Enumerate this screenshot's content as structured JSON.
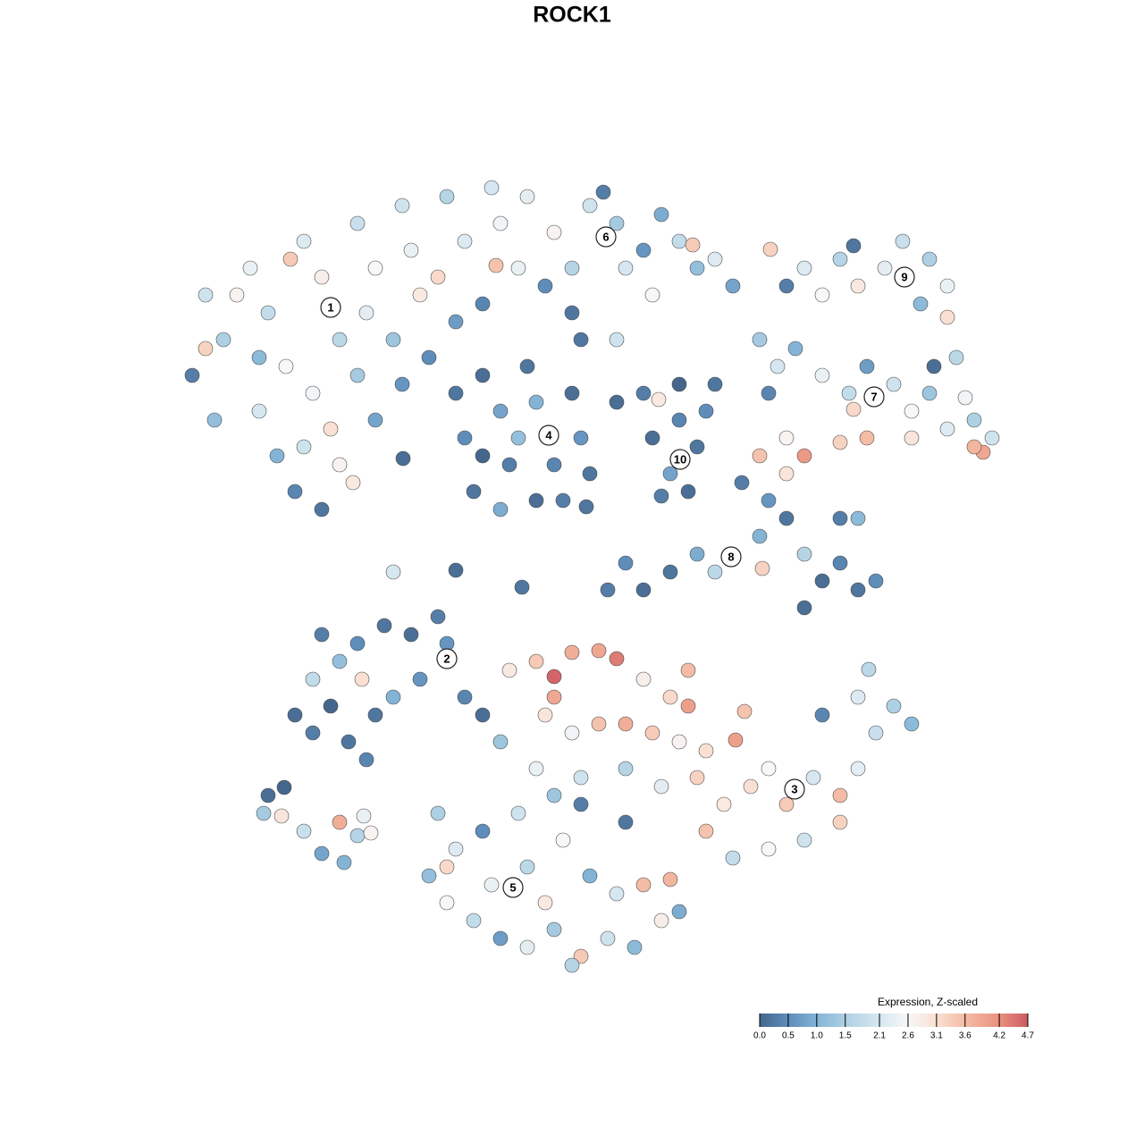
{
  "chart_data": {
    "type": "scatter",
    "title": "ROCK1",
    "xlim": [
      0,
      128
    ],
    "ylim": [
      0,
      128
    ],
    "x": [
      23,
      25,
      21.5,
      24,
      28,
      30,
      32,
      29,
      31,
      34,
      36,
      38,
      35,
      37,
      33,
      36,
      40,
      42,
      41,
      40,
      42,
      38,
      45,
      46,
      47,
      44,
      45,
      50,
      52,
      49,
      51,
      48,
      55,
      56,
      55.5,
      54,
      26.5,
      23,
      32.5,
      39.5,
      29,
      34,
      59,
      62,
      64,
      61,
      66,
      69,
      70,
      72,
      74,
      76,
      78,
      80,
      82,
      73,
      67.5,
      77.5,
      69,
      64,
      58,
      51,
      52,
      54,
      56,
      57,
      59,
      60,
      62,
      64,
      65,
      53,
      56,
      60,
      63,
      58,
      54,
      66,
      69,
      72,
      65,
      73,
      76,
      78,
      75,
      77,
      74,
      79,
      80,
      76,
      73.7,
      88,
      90,
      92,
      94,
      96,
      99,
      101,
      104,
      106,
      103,
      106,
      107,
      86.2,
      95.5,
      104.5,
      85,
      87,
      89,
      92,
      95,
      97,
      100,
      102,
      104,
      106,
      109,
      111,
      110,
      109,
      95.5,
      97,
      94,
      90,
      88,
      85,
      86,
      108,
      102,
      83,
      86,
      85,
      88,
      90,
      92,
      94,
      96,
      98,
      90,
      94,
      96,
      78,
      75,
      72,
      70,
      68,
      85.3,
      80,
      88,
      33,
      35,
      37,
      39,
      41,
      35,
      38,
      40,
      43,
      46,
      49,
      47,
      44,
      42,
      52,
      54,
      36,
      40.5,
      50,
      44,
      51,
      57,
      60,
      62,
      64,
      67,
      69,
      72,
      75,
      77,
      77,
      61,
      64,
      67,
      70,
      73,
      76,
      79,
      82.3,
      60,
      65,
      70,
      74,
      78,
      81,
      84,
      86,
      88,
      91,
      94,
      96,
      98,
      100,
      102,
      96,
      92,
      94,
      90,
      86,
      82,
      79,
      65,
      56,
      62,
      97.2,
      83.3,
      49,
      51,
      48,
      50,
      53,
      56,
      59,
      62,
      65,
      68,
      71,
      74,
      76,
      55,
      59,
      63,
      66,
      69,
      72,
      61,
      54,
      58,
      62,
      70,
      64,
      50,
      75,
      29.5,
      31.5,
      34,
      36,
      38,
      40,
      30,
      31.8,
      38.5,
      41.5,
      40.7,
      58.4,
      45.1,
      65.6
    ],
    "values": [
      95,
      90,
      86,
      81,
      98,
      93,
      87,
      82,
      77,
      101,
      97,
      90,
      84,
      80,
      73,
      71,
      103,
      98,
      93,
      86,
      81,
      76,
      105,
      100,
      95,
      90,
      85,
      106,
      101,
      97,
      92,
      88,
      107,
      103,
      98.3,
      94,
      95,
      89,
      99,
      74,
      88,
      78,
      106,
      102,
      98,
      96,
      105,
      103,
      98,
      100,
      104,
      101,
      98,
      99,
      96,
      95,
      106.5,
      100.6,
      90,
      93,
      98,
      84,
      79,
      86,
      82,
      76,
      87,
      83,
      76,
      84,
      79,
      73,
      71,
      72,
      72,
      79,
      77,
      75,
      83,
      84,
      90,
      79,
      81,
      78,
      75,
      73,
      72.5,
      82,
      85,
      85,
      83.3,
      96,
      98,
      95,
      99,
      96,
      98,
      101,
      99,
      96,
      94,
      92.5,
      88,
      100.1,
      100.5,
      87,
      90,
      87,
      89,
      86,
      84,
      87,
      85,
      82,
      84,
      80,
      81,
      79,
      77.4,
      78,
      82.2,
      79,
      78.5,
      77,
      79,
      77,
      84,
      83.5,
      79,
      74,
      72,
      68,
      70,
      66,
      63,
      65,
      62,
      63,
      60,
      70,
      70,
      66,
      64,
      62,
      65,
      62,
      64.4,
      64,
      75,
      48,
      46,
      49,
      45,
      43,
      52,
      54,
      56,
      58,
      57,
      59,
      52,
      50,
      48,
      50,
      48,
      57,
      52,
      56,
      64,
      64.2,
      53,
      54,
      52.3,
      55,
      55.2,
      54.3,
      52,
      50,
      49,
      53,
      48,
      46,
      47,
      47,
      46,
      45,
      44,
      45.2,
      42,
      41,
      42,
      40,
      41,
      38,
      40,
      42,
      38,
      41,
      39,
      42,
      46,
      49,
      47,
      50,
      48,
      36,
      34,
      33,
      32,
      35,
      38,
      45,
      50,
      53.1,
      48.4,
      37,
      33,
      30,
      27,
      25,
      23,
      22,
      24,
      21,
      23,
      22,
      25,
      26,
      29,
      31,
      34,
      30,
      28,
      29,
      27,
      35,
      37,
      39,
      36,
      20,
      31,
      29.6,
      37,
      36.7,
      35,
      32.5,
      36,
      34.5,
      39,
      39.9,
      31.5,
      34.8,
      36.7,
      62.3,
      76.7,
      71.3
    ],
    "expression": [
      2.0,
      1.5,
      0.3,
      1.2,
      2.4,
      1.8,
      2.6,
      2.1,
      1.0,
      2.2,
      2.8,
      1.7,
      2.5,
      3.1,
      0.4,
      0.2,
      1.9,
      2.6,
      2.3,
      1.4,
      0.8,
      2.7,
      2.0,
      2.4,
      2.9,
      1.3,
      0.6,
      1.6,
      2.2,
      3.2,
      0.7,
      0.5,
      2.1,
      2.5,
      3.5,
      0.4,
      2.7,
      3.3,
      3.4,
      2.9,
      1.1,
      2.0,
      2.3,
      2.7,
      1.6,
      0.5,
      2.0,
      1.4,
      2.1,
      0.6,
      0.9,
      1.8,
      1.2,
      2.2,
      0.8,
      2.6,
      0.3,
      3.4,
      2.0,
      0.2,
      2.4,
      0.2,
      0.5,
      0.1,
      0.8,
      0.3,
      0.2,
      1.0,
      0.4,
      0.1,
      0.6,
      0.2,
      0.9,
      0.1,
      0.3,
      1.2,
      0.0,
      0.2,
      0.1,
      0.3,
      0.2,
      0.1,
      0.4,
      0.2,
      0.8,
      0.1,
      0.3,
      0.5,
      0.2,
      0.0,
      2.9,
      0.3,
      2.2,
      2.6,
      1.6,
      2.9,
      2.3,
      1.9,
      1.5,
      2.4,
      1.1,
      3.1,
      1.7,
      3.3,
      0.2,
      0.1,
      1.4,
      2.1,
      1.0,
      2.4,
      1.8,
      0.7,
      2.0,
      2.6,
      1.3,
      2.2,
      1.5,
      2.0,
      3.9,
      3.7,
      3.2,
      3.6,
      3.3,
      4.1,
      2.7,
      3.5,
      0.4,
      2.5,
      3.0,
      0.3,
      0.6,
      1.0,
      0.2,
      1.6,
      0.1,
      0.4,
      0.2,
      0.5,
      0.1,
      0.3,
      1.1,
      0.9,
      0.2,
      0.1,
      0.5,
      0.3,
      3.3,
      1.7,
      3.0,
      0.1,
      0.3,
      0.0,
      0.2,
      0.4,
      1.8,
      1.2,
      0.5,
      0.2,
      0.1,
      0.3,
      0.6,
      1.0,
      0.2,
      0.4,
      0.1,
      0.3,
      3.1,
      0.6,
      2.1,
      0.1,
      2.9,
      3.4,
      4.6,
      3.8,
      3.9,
      4.4,
      2.8,
      3.2,
      4.0,
      3.6,
      3.0,
      2.5,
      3.5,
      3.8,
      3.4,
      2.7,
      3.1,
      4.0,
      2.4,
      2.0,
      1.6,
      2.3,
      3.3,
      2.9,
      3.1,
      2.6,
      3.4,
      2.1,
      3.6,
      2.3,
      1.9,
      1.5,
      1.1,
      2.2,
      0.4,
      3.3,
      2.0,
      2.6,
      1.8,
      3.5,
      0.3,
      1.3,
      3.9,
      1.7,
      3.5,
      1.5,
      2.2,
      1.2,
      2.6,
      1.8,
      0.7,
      2.3,
      1.4,
      3.4,
      2.0,
      1.1,
      2.8,
      0.9,
      2.4,
      1.7,
      2.6,
      1.0,
      2.1,
      3.6,
      2.9,
      0.5,
      2.0,
      1.3,
      0.2,
      1.6,
      3.2,
      3.7,
      1.4,
      3.0,
      1.9,
      0.8,
      3.8,
      1.6,
      0.1,
      0.0,
      1.0,
      2.7,
      2.4,
      0.2,
      0.1,
      0.2
    ],
    "annotations": [
      {
        "text": "1",
        "x": 37,
        "y": 93.6
      },
      {
        "text": "2",
        "x": 50,
        "y": 54.3
      },
      {
        "text": "3",
        "x": 88.9,
        "y": 39.7
      },
      {
        "text": "4",
        "x": 61.4,
        "y": 79.3
      },
      {
        "text": "5",
        "x": 57.4,
        "y": 28.7
      },
      {
        "text": "6",
        "x": 67.8,
        "y": 101.5
      },
      {
        "text": "7",
        "x": 97.8,
        "y": 83.6
      },
      {
        "text": "8",
        "x": 81.8,
        "y": 65.7
      },
      {
        "text": "9",
        "x": 101.2,
        "y": 97
      },
      {
        "text": "10",
        "x": 76.1,
        "y": 76.6
      }
    ],
    "colorbar": {
      "title": "Expression, Z-scaled",
      "ticks": [
        {
          "value": 0,
          "label": "0.0"
        },
        0.5,
        {
          "value": 1,
          "label": "1.0"
        },
        1.5,
        2.1,
        2.6,
        3.1,
        3.6,
        4.2,
        4.7
      ],
      "colors": [
        "#45668c",
        "#5e8dba",
        "#83b4d6",
        "#aed0e4",
        "#d6e7f1",
        "#f7f7f7",
        "#fae0d3",
        "#f4bca4",
        "#e9917f",
        "#cc5a63"
      ]
    }
  }
}
